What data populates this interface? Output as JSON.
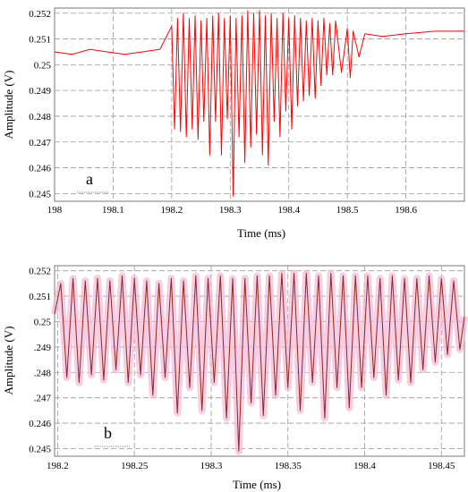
{
  "chart_data": [
    {
      "type": "line",
      "panel_label": "a",
      "xlabel": "Time (ms)",
      "ylabel": "Amplitude (V)",
      "xlim": [
        198.0,
        198.7
      ],
      "ylim": [
        0.2447,
        0.2522
      ],
      "x_ticks": [
        "198",
        "198.1",
        "198.2",
        "198.3",
        "198.4",
        "198.5",
        "198.6"
      ],
      "x_tick_values": [
        198.0,
        198.1,
        198.2,
        198.3,
        198.4,
        198.5,
        198.6
      ],
      "y_ticks": [
        "0.245",
        "0.246",
        "0.247",
        "0.248",
        "0.249",
        "0.25",
        "0.251",
        "0.252"
      ],
      "y_tick_values": [
        0.245,
        0.246,
        0.247,
        0.248,
        0.249,
        0.25,
        0.251,
        0.252
      ],
      "grid": true,
      "series_color": "#ff0000",
      "series": [
        {
          "x": [
            198.0,
            198.03,
            198.06,
            198.09,
            198.12,
            198.15,
            198.18,
            198.2,
            198.205,
            198.21,
            198.215,
            198.22,
            198.225,
            198.23,
            198.235,
            198.24,
            198.245,
            198.25,
            198.255,
            198.26,
            198.265,
            198.27,
            198.275,
            198.28,
            198.285,
            198.29,
            198.295,
            198.3,
            198.305,
            198.31,
            198.315,
            198.32,
            198.325,
            198.33,
            198.335,
            198.34,
            198.345,
            198.35,
            198.355,
            198.36,
            198.365,
            198.37,
            198.375,
            198.38,
            198.385,
            198.39,
            198.395,
            198.4,
            198.405,
            198.41,
            198.415,
            198.42,
            198.425,
            198.43,
            198.435,
            198.44,
            198.445,
            198.45,
            198.455,
            198.46,
            198.465,
            198.47,
            198.475,
            198.48,
            198.49,
            198.5,
            198.505,
            198.51,
            198.52,
            198.53,
            198.56,
            198.6,
            198.65,
            198.7
          ],
          "y": [
            0.2505,
            0.2504,
            0.2506,
            0.2505,
            0.2504,
            0.2505,
            0.2506,
            0.2515,
            0.2475,
            0.2518,
            0.2474,
            0.252,
            0.2472,
            0.2518,
            0.2475,
            0.2519,
            0.2471,
            0.2517,
            0.2478,
            0.2518,
            0.2465,
            0.2519,
            0.2478,
            0.252,
            0.2465,
            0.2518,
            0.2479,
            0.2519,
            0.2449,
            0.2518,
            0.2472,
            0.2519,
            0.2462,
            0.2521,
            0.2468,
            0.252,
            0.2473,
            0.2521,
            0.2465,
            0.2519,
            0.2461,
            0.252,
            0.2478,
            0.2518,
            0.2472,
            0.252,
            0.2482,
            0.2518,
            0.2475,
            0.2519,
            0.2484,
            0.2518,
            0.2486,
            0.2517,
            0.2488,
            0.2518,
            0.2487,
            0.2517,
            0.2492,
            0.2518,
            0.2496,
            0.2516,
            0.2496,
            0.2517,
            0.2497,
            0.2514,
            0.2495,
            0.2513,
            0.2503,
            0.2512,
            0.2511,
            0.2512,
            0.2513,
            0.2513
          ]
        }
      ]
    },
    {
      "type": "line",
      "panel_label": "b",
      "xlabel": "Time (ms)",
      "ylabel": "Amplitude (V)",
      "xlim": [
        198.198,
        198.465
      ],
      "ylim": [
        0.2447,
        0.2522
      ],
      "x_ticks": [
        "198.2",
        "198.25",
        "198.3",
        "198.35",
        "198.4",
        "198.45"
      ],
      "x_tick_values": [
        198.2,
        198.25,
        198.3,
        198.35,
        198.4,
        198.45
      ],
      "y_ticks": [
        "0.245",
        "0.246",
        ".247",
        ".248",
        ".249",
        "0.25",
        "0.251",
        "0.252"
      ],
      "y_tick_values": [
        0.245,
        0.246,
        0.247,
        0.248,
        0.249,
        0.25,
        0.251,
        0.252
      ],
      "grid": true,
      "series_color": "#8b2a1a",
      "band_color": "#f4b6da",
      "series": [
        {
          "x": [
            198.198,
            198.202,
            198.206,
            198.21,
            198.214,
            198.218,
            198.222,
            198.226,
            198.23,
            198.234,
            198.238,
            198.242,
            198.246,
            198.25,
            198.254,
            198.258,
            198.262,
            198.266,
            198.27,
            198.274,
            198.278,
            198.282,
            198.286,
            198.29,
            198.294,
            198.298,
            198.302,
            198.306,
            198.31,
            198.314,
            198.318,
            198.322,
            198.326,
            198.33,
            198.334,
            198.338,
            198.342,
            198.346,
            198.35,
            198.354,
            198.358,
            198.362,
            198.366,
            198.37,
            198.374,
            198.378,
            198.382,
            198.386,
            198.39,
            198.394,
            198.398,
            198.402,
            198.406,
            198.41,
            198.414,
            198.418,
            198.422,
            198.426,
            198.43,
            198.434,
            198.438,
            198.442,
            198.446,
            198.45,
            198.454,
            198.458,
            198.462,
            198.465
          ],
          "y": [
            0.2503,
            0.2515,
            0.2478,
            0.2517,
            0.2476,
            0.2516,
            0.2479,
            0.2517,
            0.2477,
            0.2516,
            0.2481,
            0.2518,
            0.2476,
            0.2517,
            0.2479,
            0.2516,
            0.2471,
            0.2515,
            0.2478,
            0.2517,
            0.2464,
            0.2516,
            0.2474,
            0.2518,
            0.2465,
            0.2517,
            0.2476,
            0.2518,
            0.2462,
            0.2517,
            0.2449,
            0.2517,
            0.2468,
            0.2518,
            0.2463,
            0.2518,
            0.2471,
            0.2519,
            0.2474,
            0.2519,
            0.2465,
            0.2519,
            0.2476,
            0.2518,
            0.2462,
            0.2519,
            0.2474,
            0.2518,
            0.2466,
            0.2518,
            0.2474,
            0.2518,
            0.2478,
            0.2517,
            0.2471,
            0.2518,
            0.2477,
            0.2517,
            0.2476,
            0.2517,
            0.2481,
            0.2518,
            0.2484,
            0.2517,
            0.2487,
            0.2516,
            0.2489,
            0.2502
          ]
        }
      ]
    }
  ]
}
